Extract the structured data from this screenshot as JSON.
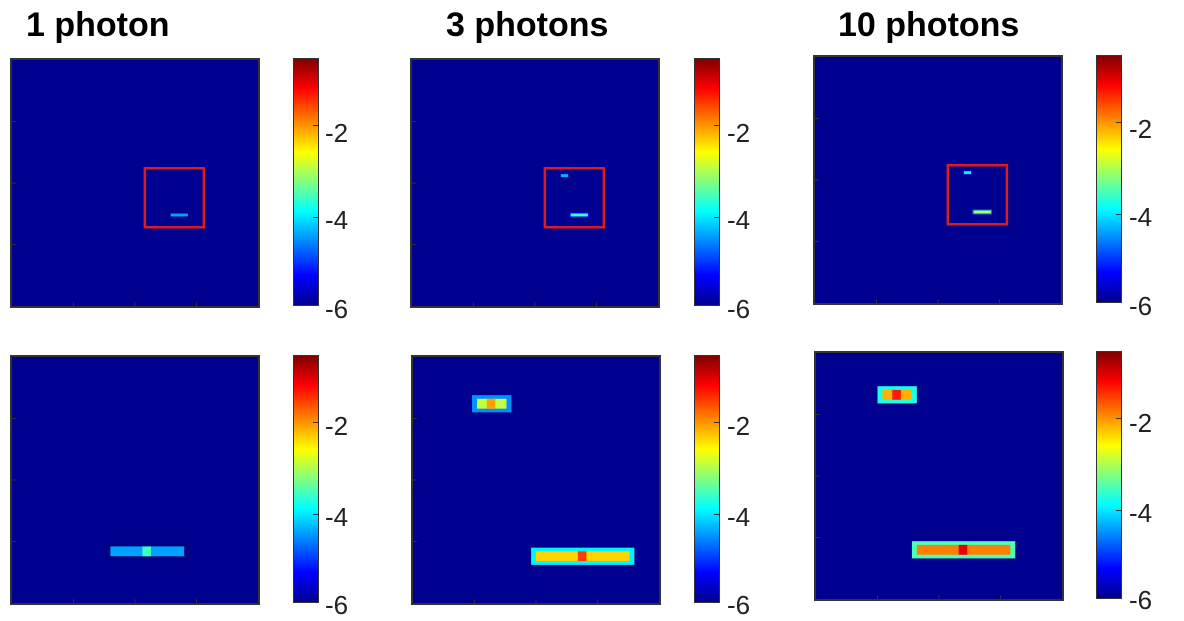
{
  "titles": [
    "1 photon",
    "3 photons",
    "10 photons"
  ],
  "colorbar": {
    "ticks": [
      "-2",
      "-4",
      "-6"
    ],
    "colormap": "jet",
    "range": [
      -6,
      0
    ]
  },
  "colors": {
    "background": "#00008f",
    "roi_box": "#e31a1c"
  },
  "chart_data": [
    {
      "type": "heatmap",
      "title": "1 photon",
      "view": "full",
      "roi_box": true,
      "colorbar_ticks": [
        -2,
        -4,
        -6
      ],
      "zlim": [
        -6,
        0
      ],
      "hotspots": [
        {
          "x": 0.68,
          "y": 0.63,
          "value": -4.3
        }
      ]
    },
    {
      "type": "heatmap",
      "title": "3 photons",
      "view": "full",
      "roi_box": true,
      "colorbar_ticks": [
        -2,
        -4,
        -6
      ],
      "zlim": [
        -6,
        0
      ],
      "hotspots": [
        {
          "x": 0.62,
          "y": 0.47,
          "value": -4.2
        },
        {
          "x": 0.68,
          "y": 0.63,
          "value": -3.4
        }
      ]
    },
    {
      "type": "heatmap",
      "title": "10 photons",
      "view": "full",
      "roi_box": true,
      "colorbar_ticks": [
        -2,
        -4,
        -6
      ],
      "zlim": [
        -6,
        0
      ],
      "hotspots": [
        {
          "x": 0.62,
          "y": 0.47,
          "value": -3.8
        },
        {
          "x": 0.68,
          "y": 0.63,
          "value": -2.8
        }
      ]
    },
    {
      "type": "heatmap",
      "view": "zoom",
      "colorbar_ticks": [
        -2,
        -4,
        -6
      ],
      "zlim": [
        -6,
        0
      ],
      "hotspots": [
        {
          "x": 0.55,
          "y": 0.79,
          "value": -4.3
        }
      ]
    },
    {
      "type": "heatmap",
      "view": "zoom",
      "colorbar_ticks": [
        -2,
        -4,
        -6
      ],
      "zlim": [
        -6,
        0
      ],
      "hotspots": [
        {
          "x": 0.32,
          "y": 0.19,
          "value": -2.6
        },
        {
          "x": 0.69,
          "y": 0.81,
          "value": -2.0
        }
      ]
    },
    {
      "type": "heatmap",
      "view": "zoom",
      "colorbar_ticks": [
        -2,
        -4,
        -6
      ],
      "zlim": [
        -6,
        0
      ],
      "hotspots": [
        {
          "x": 0.33,
          "y": 0.17,
          "value": -1.8
        },
        {
          "x": 0.6,
          "y": 0.8,
          "value": -1.5
        }
      ]
    }
  ]
}
